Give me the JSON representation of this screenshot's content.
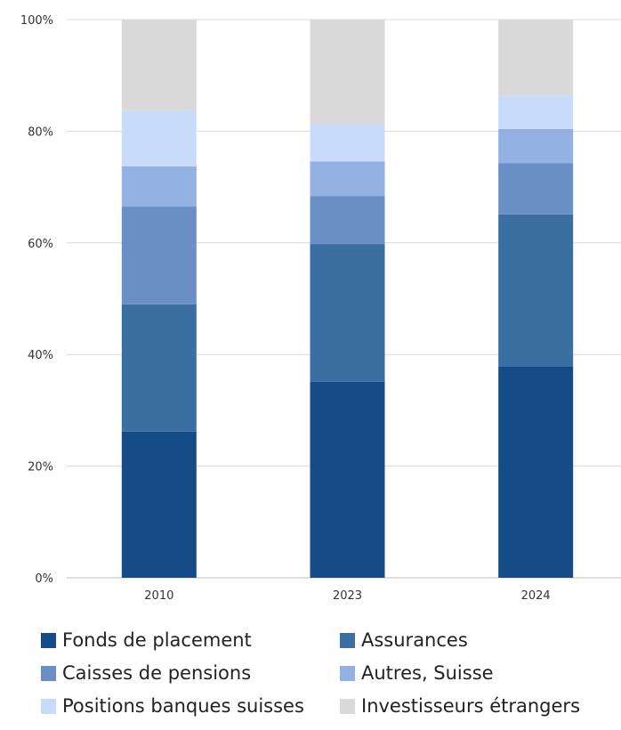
{
  "chart_data": {
    "type": "bar",
    "stacked": true,
    "categories": [
      "2010",
      "2023",
      "2024"
    ],
    "ylim": [
      0,
      100
    ],
    "yticks": [
      "0%",
      "20%",
      "40%",
      "60%",
      "80%",
      "100%"
    ],
    "grid": true,
    "legend_position": "bottom",
    "series": [
      {
        "name": "Fonds de placement",
        "color": "#154c87",
        "values": [
          26.2,
          35.1,
          37.8
        ]
      },
      {
        "name": "Assurances",
        "color": "#3b6fa4",
        "values": [
          22.8,
          24.7,
          27.3
        ]
      },
      {
        "name": "Caisses de pensions",
        "color": "#6a8fc7",
        "values": [
          17.5,
          8.6,
          9.2
        ]
      },
      {
        "name": "Autres, Suisse",
        "color": "#93b1e3",
        "values": [
          7.2,
          6.2,
          6.1
        ]
      },
      {
        "name": "Positions banques suisses",
        "color": "#c9dbfb",
        "values": [
          10.0,
          6.6,
          6.0
        ]
      },
      {
        "name": "Investisseurs étrangers",
        "color": "#d9d9d9",
        "values": [
          16.3,
          18.8,
          13.6
        ]
      }
    ]
  }
}
